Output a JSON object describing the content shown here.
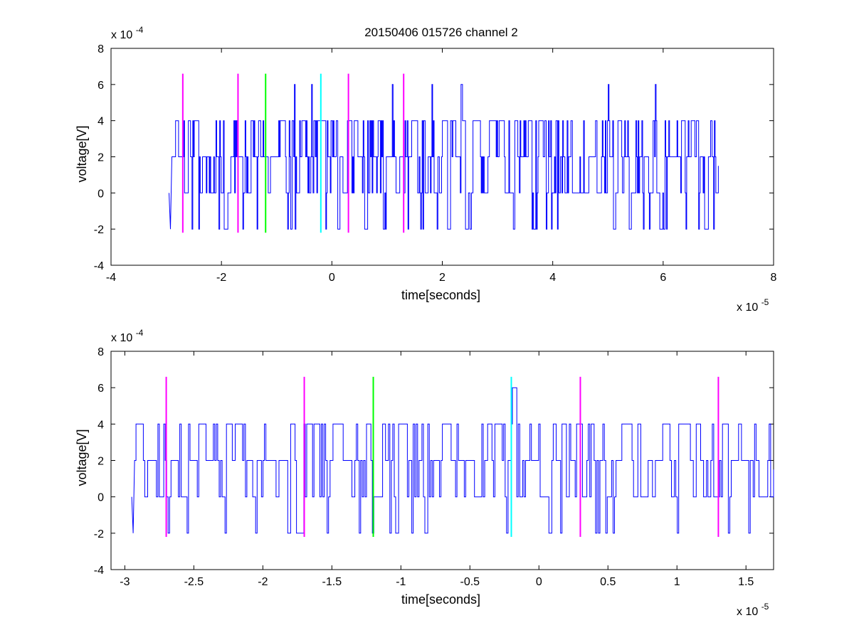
{
  "figure": {
    "title": "20150406 015726 channel 2",
    "background": "#ffffff"
  },
  "colors": {
    "signal": "#0000ff",
    "marker_magenta": "#ff00ff",
    "marker_green": "#00ff00",
    "marker_cyan": "#00ffff",
    "axes": "#000000"
  },
  "chart_data": [
    {
      "type": "line",
      "title": "20150406 015726 channel 2",
      "xlabel": "time[seconds]",
      "ylabel": "voltage[V]",
      "x_exponent": "x 10",
      "x_exponent_power": "-5",
      "y_exponent": "x 10",
      "y_exponent_power": "-4",
      "xlim": [
        -4,
        8
      ],
      "ylim": [
        -4,
        8
      ],
      "x_ticks": [
        -4,
        -2,
        0,
        2,
        4,
        6,
        8
      ],
      "x_tick_labels": [
        "-4",
        "-2",
        "0",
        "2",
        "4",
        "6",
        "8"
      ],
      "y_ticks": [
        -4,
        -2,
        0,
        2,
        4,
        6,
        8
      ],
      "y_tick_labels": [
        "-4",
        "-2",
        "0",
        "2",
        "4",
        "6",
        "8"
      ],
      "grid": false,
      "signal": {
        "x_start": -2.95,
        "x_end": 7.0,
        "levels": [
          -2,
          0,
          2,
          4,
          6
        ],
        "seed": 11,
        "mode": "dense"
      },
      "markers": [
        {
          "x": -2.7,
          "color": "magenta",
          "ymin": -2.2,
          "ymax": 6.6
        },
        {
          "x": -1.7,
          "color": "magenta",
          "ymin": -2.2,
          "ymax": 6.6
        },
        {
          "x": -1.2,
          "color": "green",
          "ymin": -2.2,
          "ymax": 6.6
        },
        {
          "x": -0.2,
          "color": "cyan",
          "ymin": -2.2,
          "ymax": 6.6
        },
        {
          "x": 0.3,
          "color": "magenta",
          "ymin": -2.2,
          "ymax": 6.6
        },
        {
          "x": 1.3,
          "color": "magenta",
          "ymin": -2.2,
          "ymax": 6.6
        }
      ]
    },
    {
      "type": "line",
      "title": "",
      "xlabel": "time[seconds]",
      "ylabel": "voltage[V]",
      "x_exponent": "x 10",
      "x_exponent_power": "-5",
      "y_exponent": "x 10",
      "y_exponent_power": "-4",
      "xlim": [
        -3.1,
        1.7
      ],
      "ylim": [
        -4,
        8
      ],
      "x_ticks": [
        -3,
        -2.5,
        -2,
        -1.5,
        -1,
        -0.5,
        0,
        0.5,
        1,
        1.5
      ],
      "x_tick_labels": [
        "-3",
        "-2.5",
        "-2",
        "-1.5",
        "-1",
        "-0.5",
        "0",
        "0.5",
        "1",
        "1.5"
      ],
      "y_ticks": [
        -4,
        -2,
        0,
        2,
        4,
        6,
        8
      ],
      "y_tick_labels": [
        "-4",
        "-2",
        "0",
        "2",
        "4",
        "6",
        "8"
      ],
      "grid": false,
      "signal": {
        "x_start": -2.95,
        "x_end": 1.7,
        "levels": [
          -2,
          0,
          2,
          4,
          6
        ],
        "seed": 29,
        "mode": "zoom"
      },
      "markers": [
        {
          "x": -2.7,
          "color": "magenta",
          "ymin": -2.2,
          "ymax": 6.6
        },
        {
          "x": -1.7,
          "color": "magenta",
          "ymin": -2.2,
          "ymax": 6.6
        },
        {
          "x": -1.2,
          "color": "green",
          "ymin": -2.2,
          "ymax": 6.6
        },
        {
          "x": -0.2,
          "color": "cyan",
          "ymin": -2.2,
          "ymax": 6.6
        },
        {
          "x": 0.3,
          "color": "magenta",
          "ymin": -2.2,
          "ymax": 6.6
        },
        {
          "x": 1.3,
          "color": "magenta",
          "ymin": -2.2,
          "ymax": 6.6
        }
      ]
    }
  ]
}
